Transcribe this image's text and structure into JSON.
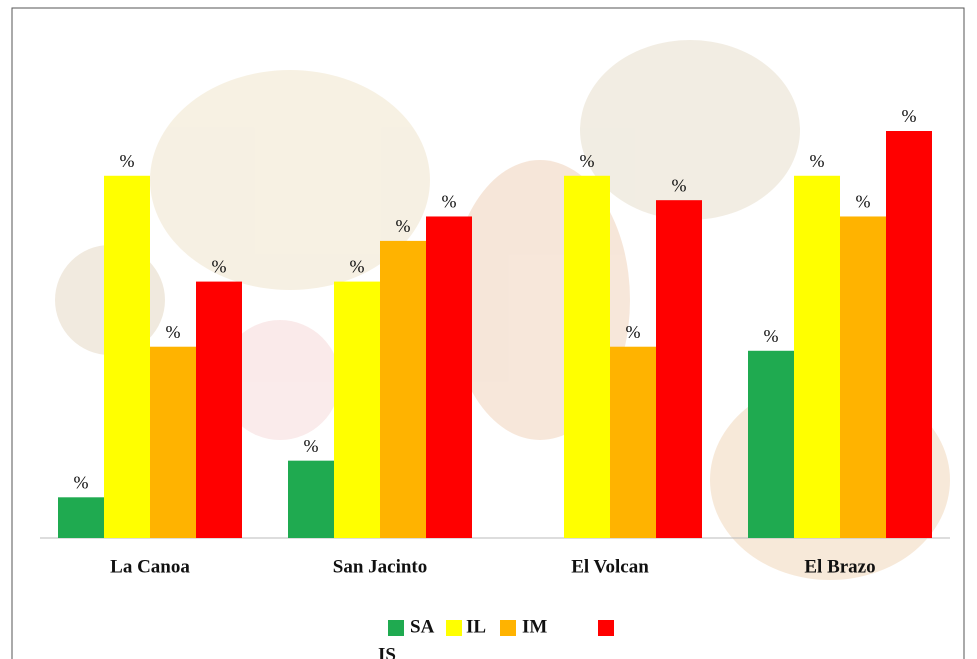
{
  "chart_data": {
    "type": "bar",
    "categories": [
      "La Canoa",
      "San Jacinto",
      "El Volcan",
      "El Brazo"
    ],
    "series": [
      {
        "name": "SA",
        "color": "#1faa50",
        "values": [
          10,
          19,
          null,
          46
        ],
        "value_labels": [
          "%",
          "%",
          null,
          "%"
        ]
      },
      {
        "name": "IL",
        "color": "#ffff00",
        "values": [
          89,
          63,
          89,
          89
        ],
        "value_labels": [
          "%",
          "%",
          "%",
          "%"
        ]
      },
      {
        "name": "IM",
        "color": "#ffb300",
        "values": [
          47,
          73,
          47,
          79
        ],
        "value_labels": [
          "%",
          "%",
          "%",
          "%"
        ]
      },
      {
        "name": "IS",
        "color": "#ff0000",
        "values": [
          63,
          79,
          83,
          100
        ],
        "value_labels": [
          "%",
          "%",
          "%",
          "%"
        ]
      }
    ],
    "ylim": [
      0,
      100
    ],
    "legend": "bottom"
  }
}
